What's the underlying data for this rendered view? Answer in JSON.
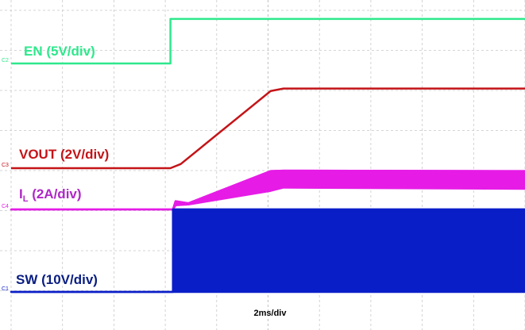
{
  "chart_data": {
    "type": "line",
    "title": "",
    "xlabel": "2ms/div",
    "ylabel": "",
    "x_units": "ms",
    "x_range": [
      0,
      20
    ],
    "grid": true,
    "grid_divisions": {
      "x": 10,
      "y": 8
    },
    "timebase": "2ms/div",
    "channels": [
      {
        "id": "C2",
        "name": "EN (5V/div)",
        "color": "#2ee88c",
        "band_to": 0,
        "x": [
          0,
          6.2,
          6.2,
          20
        ],
        "y": [
          0,
          0,
          1.08,
          1.08
        ],
        "unit_label": "V",
        "scale_per_div": 5
      },
      {
        "id": "C3",
        "name": "VOUT (2V/div)",
        "color": "#c41418",
        "band_to": 0,
        "x": [
          0,
          6.2,
          6.6,
          10.1,
          10.6,
          20
        ],
        "y": [
          0,
          0,
          0.1,
          1.87,
          1.93,
          1.93
        ],
        "unit_label": "V",
        "scale_per_div": 2
      },
      {
        "id": "C4",
        "name_main": "I",
        "name_sub": "L",
        "name_rest": " (2A/div)",
        "color": "#e61ce6",
        "x": [
          0,
          6.3,
          6.4,
          6.9,
          10.1,
          10.6,
          20
        ],
        "y": [
          0,
          0,
          0.2,
          0.15,
          0.93,
          0.94,
          0.93
        ],
        "band_to": [
          0,
          0,
          0.1,
          0.12,
          0.45,
          0.53,
          0.5
        ],
        "unit_label": "A",
        "scale_per_div": 2
      },
      {
        "id": "C1",
        "name": "SW (10V/div)",
        "color": "#0a1ec8",
        "x": [
          0,
          6.3,
          6.3,
          20
        ],
        "y": [
          0,
          0,
          2.0,
          2.0
        ],
        "band_to": [
          0,
          0,
          0,
          0
        ],
        "unit_label": "V",
        "scale_per_div": 10
      }
    ],
    "channel_markers": [
      "C2",
      "C3",
      "C4",
      "C1"
    ],
    "colors": {
      "grid": "#c8c8c8",
      "background": "#ffffff",
      "label_text_dark": "#0a1e82"
    }
  }
}
